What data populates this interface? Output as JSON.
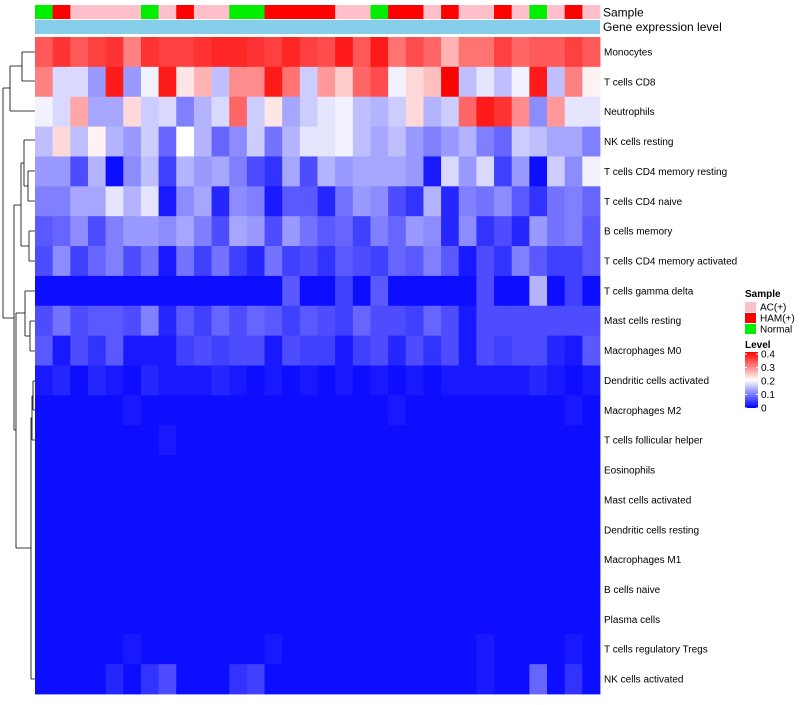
{
  "chart_data": {
    "type": "heatmap",
    "title": "",
    "column_count": 32,
    "row_labels": [
      "Monocytes",
      "T cells CD8",
      "Neutrophils",
      "NK cells resting",
      "T cells CD4 memory resting",
      "T cells CD4 naive",
      "B cells memory",
      "T cells CD4 memory activated",
      "T cells gamma delta",
      "Mast cells resting",
      "Macrophages M0",
      "Dendritic cells activated",
      "Macrophages M2",
      "T cells follicular helper",
      "Eosinophils",
      "Mast cells activated",
      "Dendritic cells resting",
      "Macrophages M1",
      "B cells naive",
      "Plasma cells",
      "T cells regulatory  Tregs",
      "NK cells activated"
    ],
    "annotation_tracks": [
      {
        "name": "Sample",
        "values": [
          "Normal",
          "HAM(+)",
          "AC(+)",
          "AC(+)",
          "AC(+)",
          "AC(+)",
          "Normal",
          "AC(+)",
          "HAM(+)",
          "AC(+)",
          "AC(+)",
          "Normal",
          "Normal",
          "HAM(+)",
          "HAM(+)",
          "HAM(+)",
          "HAM(+)",
          "AC(+)",
          "AC(+)",
          "Normal",
          "HAM(+)",
          "HAM(+)",
          "AC(+)",
          "HAM(+)",
          "AC(+)",
          "AC(+)",
          "HAM(+)",
          "AC(+)",
          "Normal",
          "AC(+)",
          "HAM(+)",
          "AC(+)"
        ]
      },
      {
        "name": "Gene expression level",
        "color": "#87CEEB"
      }
    ],
    "legends": [
      {
        "title": "Sample",
        "entries": [
          {
            "label": "AC(+)",
            "color": "#FFC0CB"
          },
          {
            "label": "HAM(+)",
            "color": "#FF0000"
          },
          {
            "label": "Normal",
            "color": "#00EE00"
          }
        ]
      },
      {
        "title": "Level",
        "stops": [
          {
            "value": 0,
            "color": "#0000FF"
          },
          {
            "value": 0.2,
            "color": "#FFFFFF"
          },
          {
            "value": 0.4,
            "color": "#FF0000"
          }
        ],
        "ticks": [
          "0.4",
          "0.3",
          "0.2",
          "0.1",
          "0"
        ],
        "range": [
          0,
          0.4
        ]
      }
    ],
    "values": [
      [
        0.33,
        0.36,
        0.33,
        0.35,
        0.36,
        0.3,
        0.36,
        0.35,
        0.35,
        0.36,
        0.37,
        0.37,
        0.36,
        0.35,
        0.37,
        0.35,
        0.34,
        0.38,
        0.33,
        0.38,
        0.31,
        0.34,
        0.32,
        0.26,
        0.31,
        0.31,
        0.35,
        0.32,
        0.33,
        0.33,
        0.35,
        0.33
      ],
      [
        0.3,
        0.17,
        0.17,
        0.12,
        0.38,
        0.12,
        0.19,
        0.38,
        0.22,
        0.26,
        0.15,
        0.29,
        0.29,
        0.38,
        0.31,
        0.16,
        0.28,
        0.24,
        0.32,
        0.34,
        0.19,
        0.23,
        0.25,
        0.4,
        0.15,
        0.18,
        0.15,
        0.19,
        0.38,
        0.15,
        0.3,
        0.21
      ],
      [
        0.19,
        0.17,
        0.27,
        0.13,
        0.13,
        0.23,
        0.16,
        0.17,
        0.1,
        0.14,
        0.17,
        0.32,
        0.16,
        0.22,
        0.13,
        0.16,
        0.18,
        0.19,
        0.15,
        0.14,
        0.16,
        0.23,
        0.14,
        0.16,
        0.32,
        0.38,
        0.36,
        0.29,
        0.11,
        0.28,
        0.18,
        0.18
      ],
      [
        0.15,
        0.23,
        0.15,
        0.21,
        0.14,
        0.12,
        0.16,
        0.08,
        0.2,
        0.14,
        0.08,
        0.11,
        0.16,
        0.09,
        0.14,
        0.18,
        0.18,
        0.19,
        0.15,
        0.13,
        0.15,
        0.12,
        0.1,
        0.12,
        0.14,
        0.1,
        0.08,
        0.16,
        0.15,
        0.13,
        0.13,
        0.1
      ],
      [
        0.12,
        0.12,
        0.06,
        0.14,
        0.01,
        0.11,
        0.15,
        0.05,
        0.14,
        0.12,
        0.13,
        0.1,
        0.06,
        0.04,
        0.13,
        0.06,
        0.14,
        0.12,
        0.13,
        0.13,
        0.13,
        0.12,
        0.02,
        0.17,
        0.12,
        0.17,
        0.05,
        0.12,
        0.01,
        0.16,
        0.11,
        0.19
      ],
      [
        0.1,
        0.1,
        0.13,
        0.13,
        0.18,
        0.14,
        0.18,
        0.02,
        0.11,
        0.13,
        0.03,
        0.11,
        0.1,
        0.02,
        0.07,
        0.07,
        0.03,
        0.09,
        0.12,
        0.11,
        0.06,
        0.04,
        0.14,
        0.03,
        0.1,
        0.09,
        0.11,
        0.07,
        0.04,
        0.09,
        0.1,
        0.08
      ],
      [
        0.07,
        0.08,
        0.11,
        0.06,
        0.1,
        0.12,
        0.12,
        0.11,
        0.13,
        0.1,
        0.06,
        0.13,
        0.12,
        0.06,
        0.12,
        0.09,
        0.07,
        0.08,
        0.05,
        0.1,
        0.08,
        0.12,
        0.11,
        0.03,
        0.11,
        0.04,
        0.06,
        0.03,
        0.12,
        0.09,
        0.1,
        0.07
      ],
      [
        0.06,
        0.11,
        0.05,
        0.08,
        0.1,
        0.06,
        0.09,
        0.02,
        0.09,
        0.05,
        0.09,
        0.05,
        0.03,
        0.09,
        0.05,
        0.06,
        0.04,
        0.07,
        0.06,
        0.05,
        0.08,
        0.07,
        0.1,
        0.07,
        0.02,
        0.06,
        0.04,
        0.1,
        0.07,
        0.05,
        0.05,
        0.07
      ],
      [
        0.01,
        0.01,
        0.01,
        0.01,
        0.01,
        0.01,
        0.01,
        0.01,
        0.01,
        0.01,
        0.01,
        0.01,
        0.01,
        0.01,
        0.07,
        0.01,
        0.01,
        0.05,
        0.01,
        0.07,
        0.01,
        0.01,
        0.01,
        0.01,
        0.01,
        0.06,
        0.01,
        0.01,
        0.14,
        0.01,
        0.05,
        0.01
      ],
      [
        0.06,
        0.09,
        0.06,
        0.07,
        0.07,
        0.06,
        0.1,
        0.03,
        0.07,
        0.05,
        0.08,
        0.06,
        0.08,
        0.07,
        0.05,
        0.07,
        0.06,
        0.05,
        0.08,
        0.06,
        0.06,
        0.05,
        0.08,
        0.06,
        0.02,
        0.06,
        0.06,
        0.06,
        0.06,
        0.06,
        0.06,
        0.06
      ],
      [
        0.07,
        0.02,
        0.06,
        0.04,
        0.07,
        0.02,
        0.02,
        0.02,
        0.05,
        0.06,
        0.05,
        0.06,
        0.06,
        0.02,
        0.06,
        0.05,
        0.05,
        0.02,
        0.05,
        0.06,
        0.03,
        0.06,
        0.04,
        0.06,
        0.02,
        0.06,
        0.05,
        0.06,
        0.06,
        0.03,
        0.02,
        0.07
      ],
      [
        0.02,
        0.03,
        0.01,
        0.03,
        0.02,
        0.01,
        0.03,
        0.02,
        0.02,
        0.02,
        0.03,
        0.02,
        0.01,
        0.02,
        0.01,
        0.02,
        0.01,
        0.02,
        0.01,
        0.02,
        0.01,
        0.02,
        0.01,
        0.02,
        0.02,
        0.02,
        0.02,
        0.02,
        0.03,
        0.02,
        0.01,
        0.02
      ],
      [
        0.01,
        0.01,
        0.01,
        0.01,
        0.01,
        0.02,
        0.01,
        0.01,
        0.01,
        0.01,
        0.01,
        0.01,
        0.01,
        0.01,
        0.01,
        0.01,
        0.01,
        0.01,
        0.01,
        0.01,
        0.02,
        0.01,
        0.01,
        0.01,
        0.01,
        0.01,
        0.01,
        0.01,
        0.01,
        0.01,
        0.02,
        0.01
      ],
      [
        0.01,
        0.01,
        0.01,
        0.01,
        0.01,
        0.01,
        0.01,
        0.02,
        0.01,
        0.01,
        0.01,
        0.01,
        0.01,
        0.01,
        0.01,
        0.01,
        0.01,
        0.01,
        0.01,
        0.01,
        0.01,
        0.01,
        0.01,
        0.01,
        0.01,
        0.01,
        0.01,
        0.01,
        0.01,
        0.01,
        0.01,
        0.01
      ],
      [
        0.01,
        0.01,
        0.01,
        0.01,
        0.01,
        0.01,
        0.01,
        0.01,
        0.01,
        0.01,
        0.01,
        0.01,
        0.01,
        0.01,
        0.01,
        0.01,
        0.01,
        0.01,
        0.01,
        0.01,
        0.01,
        0.01,
        0.01,
        0.01,
        0.01,
        0.01,
        0.01,
        0.01,
        0.01,
        0.01,
        0.01,
        0.01
      ],
      [
        0.01,
        0.01,
        0.01,
        0.01,
        0.01,
        0.01,
        0.01,
        0.01,
        0.01,
        0.01,
        0.01,
        0.01,
        0.01,
        0.01,
        0.01,
        0.01,
        0.01,
        0.01,
        0.01,
        0.01,
        0.01,
        0.01,
        0.01,
        0.01,
        0.01,
        0.01,
        0.01,
        0.01,
        0.01,
        0.01,
        0.01,
        0.01
      ],
      [
        0.01,
        0.01,
        0.01,
        0.01,
        0.01,
        0.01,
        0.01,
        0.01,
        0.01,
        0.01,
        0.01,
        0.01,
        0.01,
        0.01,
        0.01,
        0.01,
        0.01,
        0.01,
        0.01,
        0.01,
        0.01,
        0.01,
        0.01,
        0.01,
        0.01,
        0.01,
        0.01,
        0.01,
        0.01,
        0.01,
        0.01,
        0.01
      ],
      [
        0.01,
        0.01,
        0.01,
        0.01,
        0.01,
        0.01,
        0.01,
        0.01,
        0.01,
        0.01,
        0.01,
        0.01,
        0.01,
        0.01,
        0.01,
        0.01,
        0.01,
        0.01,
        0.01,
        0.01,
        0.01,
        0.01,
        0.01,
        0.01,
        0.01,
        0.01,
        0.01,
        0.01,
        0.01,
        0.01,
        0.01,
        0.01
      ],
      [
        0.01,
        0.01,
        0.01,
        0.01,
        0.01,
        0.01,
        0.01,
        0.01,
        0.01,
        0.01,
        0.01,
        0.01,
        0.01,
        0.01,
        0.01,
        0.01,
        0.01,
        0.01,
        0.01,
        0.01,
        0.01,
        0.01,
        0.01,
        0.01,
        0.01,
        0.01,
        0.01,
        0.01,
        0.01,
        0.01,
        0.01,
        0.01
      ],
      [
        0.01,
        0.01,
        0.01,
        0.01,
        0.01,
        0.01,
        0.01,
        0.01,
        0.01,
        0.01,
        0.01,
        0.01,
        0.01,
        0.01,
        0.01,
        0.01,
        0.01,
        0.01,
        0.01,
        0.01,
        0.01,
        0.01,
        0.01,
        0.01,
        0.01,
        0.01,
        0.01,
        0.01,
        0.01,
        0.01,
        0.01,
        0.01
      ],
      [
        0.01,
        0.01,
        0.01,
        0.01,
        0.01,
        0.02,
        0.01,
        0.01,
        0.01,
        0.01,
        0.01,
        0.01,
        0.01,
        0.02,
        0.01,
        0.01,
        0.01,
        0.01,
        0.01,
        0.01,
        0.01,
        0.01,
        0.01,
        0.01,
        0.01,
        0.02,
        0.01,
        0.01,
        0.01,
        0.01,
        0.02,
        0.01
      ],
      [
        0.01,
        0.01,
        0.01,
        0.01,
        0.03,
        0.01,
        0.04,
        0.06,
        0.01,
        0.01,
        0.01,
        0.04,
        0.05,
        0.01,
        0.01,
        0.01,
        0.01,
        0.01,
        0.01,
        0.01,
        0.01,
        0.01,
        0.01,
        0.01,
        0.01,
        0.02,
        0.01,
        0.01,
        0.08,
        0.01,
        0.04,
        0.01
      ]
    ]
  }
}
